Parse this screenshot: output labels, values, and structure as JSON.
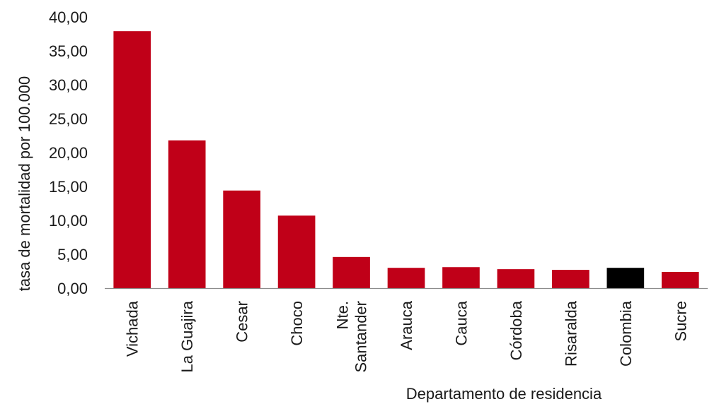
{
  "chart_data": {
    "type": "bar",
    "title": "",
    "xlabel": "Departamento de residencia",
    "ylabel": "tasa de mortalidad por 100.000",
    "ylim": [
      0,
      40
    ],
    "yticks": [
      "0,00",
      "5,00",
      "10,00",
      "15,00",
      "20,00",
      "25,00",
      "30,00",
      "35,00",
      "40,00"
    ],
    "categories": [
      "Vichada",
      "La Guajira",
      "Cesar",
      "Choco",
      "Nte. Santander",
      "Arauca",
      "Cauca",
      "Córdoba",
      "Risaralda",
      "Colombia",
      "Sucre"
    ],
    "category_lines": [
      [
        "Vichada"
      ],
      [
        "La Guajira"
      ],
      [
        "Cesar"
      ],
      [
        "Choco"
      ],
      [
        "Nte.",
        "Santander"
      ],
      [
        "Arauca"
      ],
      [
        "Cauca"
      ],
      [
        "Córdoba"
      ],
      [
        "Risaralda"
      ],
      [
        "Colombia"
      ],
      [
        "Sucre"
      ]
    ],
    "values": [
      37.9,
      21.8,
      14.4,
      10.7,
      4.6,
      3.0,
      3.1,
      2.8,
      2.7,
      3.0,
      2.4
    ],
    "bar_colors": [
      "#c00018",
      "#c00018",
      "#c00018",
      "#c00018",
      "#c00018",
      "#c00018",
      "#c00018",
      "#c00018",
      "#c00018",
      "#000000",
      "#c00018"
    ],
    "grid": false,
    "legend": "none"
  }
}
